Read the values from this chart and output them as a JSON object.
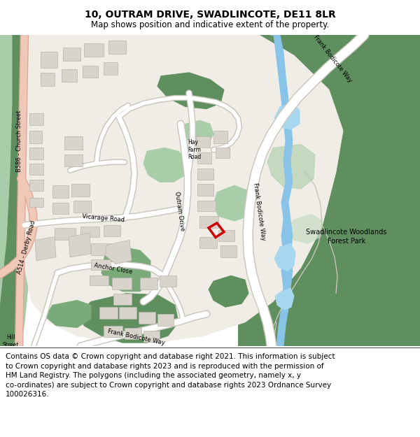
{
  "title": "10, OUTRAM DRIVE, SWADLINCOTE, DE11 8LR",
  "subtitle": "Map shows position and indicative extent of the property.",
  "footer_full": "Contains OS data © Crown copyright and database right 2021. This information is subject\nto Crown copyright and database rights 2023 and is reproduced with the permission of\nHM Land Registry. The polygons (including the associated geometry, namely x, y\nco-ordinates) are subject to Crown copyright and database rights 2023 Ordnance Survey\n100026316.",
  "bg_map": "#f0ede6",
  "green_dark": "#5f8f5f",
  "green_mid": "#7aaa7a",
  "green_light": "#a8cda8",
  "green_pale": "#c5ddc5",
  "road_white": "#ffffff",
  "road_light": "#e8e4dc",
  "road_border": "#c8c4bc",
  "building_fill": "#d8d4cc",
  "building_edge": "#b8b4ac",
  "water_blue": "#88c4e8",
  "water_light": "#a8d8f0",
  "pink_road_fill": "#f0c8b8",
  "pink_road_border": "#e0a898",
  "red_box": "#cc0000",
  "title_fontsize": 10,
  "subtitle_fontsize": 8.5,
  "footer_fontsize": 7.5
}
